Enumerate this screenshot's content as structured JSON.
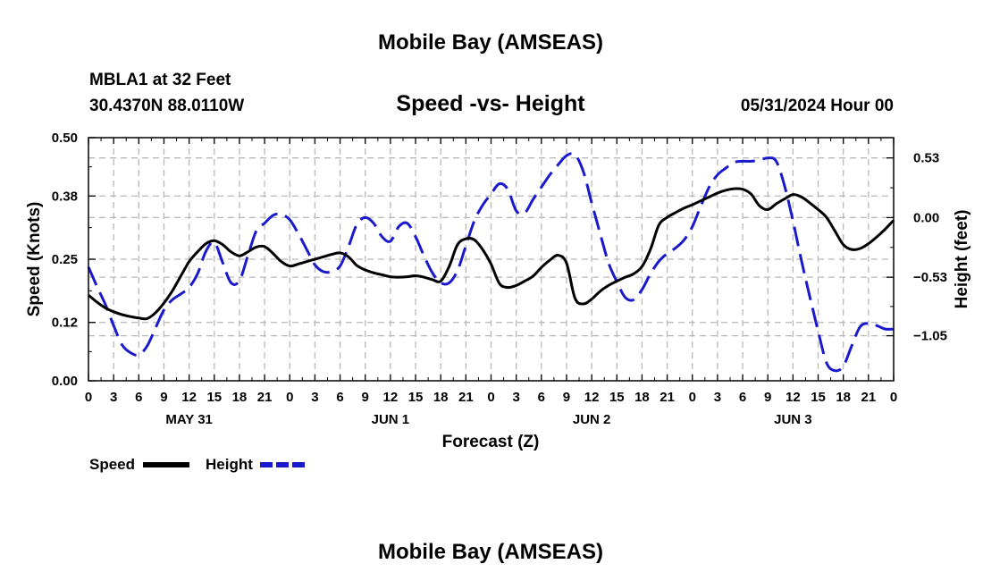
{
  "page": {
    "title": "Mobile Bay (AMSEAS)",
    "station_line": "MBLA1 at 32 Feet",
    "coords_line": "30.4370N  88.0110W",
    "datetime_line": "05/31/2024 Hour 00",
    "footer_title": "Mobile Bay (AMSEAS)"
  },
  "colors": {
    "speed": "#000000",
    "height": "#1a1acc",
    "grid": "#b8b8b8"
  },
  "chart_data": {
    "type": "line",
    "title": "Speed -vs- Height",
    "xlabel": "Forecast (Z)",
    "ylabel": "Speed (Knots)",
    "y2label": "Height (feet)",
    "xlim": [
      0,
      96
    ],
    "ylim": [
      0,
      0.5
    ],
    "y2lim": [
      -1.45,
      0.71
    ],
    "grid": true,
    "legend_position": "bottom-left",
    "x_ticks": [
      0,
      3,
      6,
      9,
      12,
      15,
      18,
      21,
      24,
      27,
      30,
      33,
      36,
      39,
      42,
      45,
      48,
      51,
      54,
      57,
      60,
      63,
      66,
      69,
      72,
      75,
      78,
      81,
      84,
      87,
      90,
      93,
      96
    ],
    "x_tick_labels": [
      "0",
      "3",
      "6",
      "9",
      "12",
      "15",
      "18",
      "21",
      "0",
      "3",
      "6",
      "9",
      "12",
      "15",
      "18",
      "21",
      "0",
      "3",
      "6",
      "9",
      "12",
      "15",
      "18",
      "21",
      "0",
      "3",
      "6",
      "9",
      "12",
      "15",
      "18",
      "21",
      "0"
    ],
    "day_labels": [
      {
        "x": 12,
        "label": "MAY 31"
      },
      {
        "x": 36,
        "label": "JUN 1"
      },
      {
        "x": 60,
        "label": "JUN 2"
      },
      {
        "x": 84,
        "label": "JUN 3"
      }
    ],
    "y_ticks": [
      0.0,
      0.12,
      0.25,
      0.38,
      0.5
    ],
    "y_tick_labels": [
      "0.00",
      "0.12",
      "0.25",
      "0.38",
      "0.50"
    ],
    "y2_ticks": [
      0.53,
      0.0,
      -0.53,
      -1.05
    ],
    "y2_tick_labels": [
      "0.53",
      "0.00",
      "−0.53",
      "−1.05"
    ],
    "series": [
      {
        "name": "Speed",
        "axis": "left",
        "style": "solid",
        "x": [
          0,
          1,
          2,
          3,
          4,
          5,
          6,
          7,
          8,
          9,
          10,
          11,
          12,
          13,
          14,
          15,
          16,
          17,
          18,
          19,
          20,
          21,
          22,
          23,
          24,
          25,
          26,
          27,
          28,
          29,
          30,
          31,
          32,
          33,
          34,
          35,
          36,
          37,
          38,
          39,
          40,
          41,
          42,
          43,
          44,
          45,
          46,
          47,
          48,
          49,
          50,
          51,
          52,
          53,
          54,
          55,
          56,
          57,
          58,
          59,
          60,
          61,
          62,
          63,
          64,
          65,
          66,
          67,
          68,
          69,
          70,
          71,
          72,
          73,
          74,
          75,
          76,
          77,
          78,
          79,
          80,
          81,
          82,
          83,
          84,
          85,
          86,
          87,
          88,
          89,
          90,
          91,
          92,
          93,
          94,
          95,
          96
        ],
        "values": [
          0.176,
          0.162,
          0.15,
          0.142,
          0.136,
          0.132,
          0.129,
          0.128,
          0.14,
          0.16,
          0.185,
          0.215,
          0.245,
          0.265,
          0.282,
          0.288,
          0.28,
          0.265,
          0.257,
          0.265,
          0.275,
          0.276,
          0.262,
          0.245,
          0.236,
          0.24,
          0.245,
          0.25,
          0.255,
          0.26,
          0.263,
          0.255,
          0.237,
          0.228,
          0.222,
          0.218,
          0.214,
          0.213,
          0.214,
          0.216,
          0.213,
          0.208,
          0.205,
          0.235,
          0.28,
          0.292,
          0.29,
          0.27,
          0.24,
          0.2,
          0.192,
          0.196,
          0.205,
          0.215,
          0.233,
          0.248,
          0.258,
          0.242,
          0.17,
          0.158,
          0.168,
          0.184,
          0.196,
          0.205,
          0.213,
          0.22,
          0.235,
          0.27,
          0.32,
          0.336,
          0.346,
          0.355,
          0.362,
          0.37,
          0.378,
          0.386,
          0.392,
          0.395,
          0.394,
          0.384,
          0.36,
          0.352,
          0.364,
          0.374,
          0.383,
          0.378,
          0.366,
          0.352,
          0.336,
          0.308,
          0.28,
          0.27,
          0.272,
          0.282,
          0.296,
          0.312,
          0.33
        ]
      },
      {
        "name": "Height",
        "axis": "right",
        "style": "dashed",
        "x": [
          0,
          1,
          2,
          3,
          4,
          5,
          6,
          7,
          8,
          9,
          10,
          11,
          12,
          13,
          14,
          15,
          16,
          17,
          18,
          19,
          20,
          21,
          22,
          23,
          24,
          25,
          26,
          27,
          28,
          29,
          30,
          31,
          32,
          33,
          34,
          35,
          36,
          37,
          38,
          39,
          40,
          41,
          42,
          43,
          44,
          45,
          46,
          47,
          48,
          49,
          50,
          51,
          52,
          53,
          54,
          55,
          56,
          57,
          58,
          59,
          60,
          61,
          62,
          63,
          64,
          65,
          66,
          67,
          68,
          69,
          70,
          71,
          72,
          73,
          74,
          75,
          76,
          77,
          78,
          79,
          80,
          81,
          82,
          83,
          84,
          85,
          86,
          87,
          88,
          89,
          90,
          91,
          92,
          93,
          94,
          95,
          96
        ],
        "values": [
          -0.44,
          -0.61,
          -0.77,
          -0.96,
          -1.13,
          -1.2,
          -1.22,
          -1.14,
          -0.98,
          -0.82,
          -0.73,
          -0.68,
          -0.62,
          -0.5,
          -0.3,
          -0.22,
          -0.4,
          -0.58,
          -0.56,
          -0.34,
          -0.12,
          -0.05,
          0.02,
          0.03,
          -0.02,
          -0.14,
          -0.28,
          -0.42,
          -0.48,
          -0.48,
          -0.43,
          -0.26,
          -0.06,
          0.0,
          -0.05,
          -0.17,
          -0.21,
          -0.08,
          -0.05,
          -0.17,
          -0.34,
          -0.49,
          -0.58,
          -0.58,
          -0.47,
          -0.25,
          -0.03,
          0.11,
          0.21,
          0.3,
          0.25,
          0.06,
          0.04,
          0.16,
          0.27,
          0.38,
          0.47,
          0.55,
          0.56,
          0.41,
          0.13,
          -0.14,
          -0.4,
          -0.57,
          -0.71,
          -0.73,
          -0.64,
          -0.5,
          -0.39,
          -0.32,
          -0.27,
          -0.2,
          -0.08,
          0.1,
          0.27,
          0.38,
          0.44,
          0.49,
          0.5,
          0.5,
          0.51,
          0.53,
          0.5,
          0.28,
          -0.03,
          -0.38,
          -0.7,
          -1.01,
          -1.29,
          -1.36,
          -1.32,
          -1.14,
          -0.97,
          -0.94,
          -0.96,
          -0.99,
          -0.99
        ]
      }
    ]
  }
}
